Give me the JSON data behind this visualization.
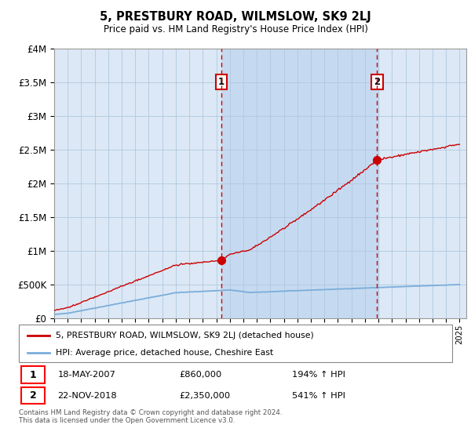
{
  "title": "5, PRESTBURY ROAD, WILMSLOW, SK9 2LJ",
  "subtitle": "Price paid vs. HM Land Registry's House Price Index (HPI)",
  "legend_line1": "5, PRESTBURY ROAD, WILMSLOW, SK9 2LJ (detached house)",
  "legend_line2": "HPI: Average price, detached house, Cheshire East",
  "annotation1_date": "18-MAY-2007",
  "annotation1_price": "£860,000",
  "annotation1_hpi": "194% ↑ HPI",
  "annotation2_date": "22-NOV-2018",
  "annotation2_price": "£2,350,000",
  "annotation2_hpi": "541% ↑ HPI",
  "footer": "Contains HM Land Registry data © Crown copyright and database right 2024.\nThis data is licensed under the Open Government Licence v3.0.",
  "red_color": "#cc0000",
  "blue_color": "#7aaddb",
  "background_color": "#ffffff",
  "plot_bg_color": "#dce8f5",
  "grid_color": "#b0c8e0",
  "highlight_bg": "#c5daf0",
  "ylim": [
    0,
    4000000
  ],
  "year_start": 1995,
  "year_end": 2025,
  "sale1_year": 2007.37,
  "sale1_price": 860000,
  "sale2_year": 2018.9,
  "sale2_price": 2350000
}
